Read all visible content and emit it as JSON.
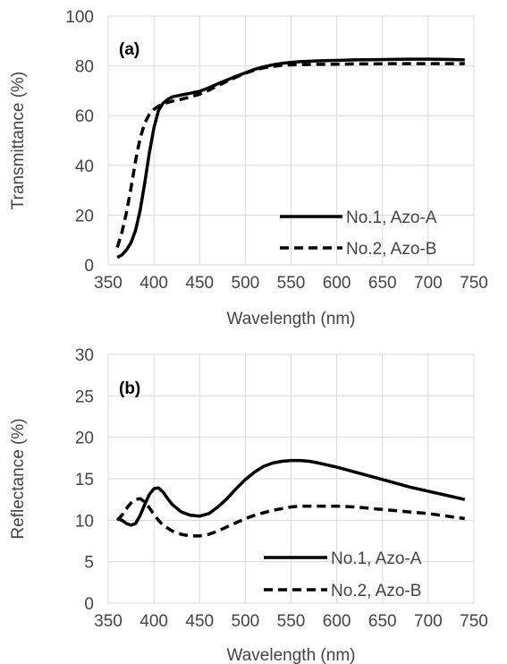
{
  "chart_data": [
    {
      "type": "line",
      "panel_label": "(a)",
      "xlabel": "Wavelength (nm)",
      "ylabel": "Transmittance (%)",
      "xlim": [
        350,
        750
      ],
      "ylim": [
        0,
        100
      ],
      "xticks": [
        350,
        400,
        450,
        500,
        550,
        600,
        650,
        700,
        750
      ],
      "yticks": [
        0,
        20,
        40,
        60,
        80,
        100
      ],
      "grid": true,
      "legend_position": "bottom-right",
      "series": [
        {
          "name": "No.1, Azo-A",
          "style": "solid",
          "color": "#000000",
          "x": [
            360,
            365,
            370,
            375,
            380,
            385,
            390,
            395,
            400,
            405,
            410,
            415,
            420,
            430,
            440,
            450,
            460,
            470,
            480,
            490,
            500,
            510,
            520,
            530,
            540,
            550,
            560,
            580,
            600,
            620,
            640,
            660,
            680,
            700,
            720,
            740
          ],
          "y": [
            3,
            4,
            6,
            9,
            14,
            22,
            33,
            45,
            55,
            62,
            65,
            66.5,
            67.5,
            68.3,
            69,
            69.8,
            71.2,
            72.8,
            74.3,
            75.8,
            77.2,
            78.6,
            79.6,
            80.4,
            81,
            81.4,
            81.7,
            82,
            82.2,
            82.4,
            82.5,
            82.6,
            82.7,
            82.7,
            82.6,
            82.4
          ]
        },
        {
          "name": "No.2, Azo-B",
          "style": "dashed",
          "color": "#000000",
          "x": [
            360,
            365,
            370,
            375,
            380,
            385,
            390,
            395,
            400,
            405,
            410,
            420,
            430,
            440,
            450,
            460,
            470,
            480,
            490,
            500,
            510,
            520,
            530,
            540,
            550,
            560,
            580,
            600,
            620,
            640,
            660,
            680,
            700,
            720,
            740
          ],
          "y": [
            7,
            13,
            21,
            31,
            42,
            51,
            57,
            60.5,
            62.5,
            63.8,
            64.7,
            65.8,
            66.6,
            67.5,
            68.6,
            70.2,
            72.1,
            73.8,
            75.5,
            77,
            78.3,
            79.2,
            79.8,
            80.2,
            80.4,
            80.5,
            80.6,
            80.7,
            80.8,
            80.8,
            80.9,
            80.9,
            80.9,
            80.9,
            80.9
          ]
        }
      ]
    },
    {
      "type": "line",
      "panel_label": "(b)",
      "xlabel": "Wavelength (nm)",
      "ylabel": "Reflectance (%)",
      "xlim": [
        350,
        750
      ],
      "ylim": [
        0,
        30
      ],
      "xticks": [
        350,
        400,
        450,
        500,
        550,
        600,
        650,
        700,
        750
      ],
      "yticks": [
        0,
        5,
        10,
        15,
        20,
        25,
        30
      ],
      "grid": true,
      "legend_position": "bottom-right",
      "series": [
        {
          "name": "No.1, Azo-A",
          "style": "solid",
          "color": "#000000",
          "x": [
            360,
            365,
            370,
            375,
            380,
            385,
            390,
            395,
            400,
            405,
            410,
            415,
            420,
            430,
            440,
            450,
            460,
            470,
            480,
            490,
            500,
            510,
            520,
            530,
            540,
            550,
            560,
            570,
            580,
            600,
            620,
            640,
            660,
            680,
            700,
            720,
            740
          ],
          "y": [
            10.2,
            10,
            9.6,
            9.4,
            9.6,
            10.6,
            11.9,
            13.1,
            13.8,
            13.9,
            13.4,
            12.6,
            11.9,
            11,
            10.6,
            10.5,
            10.8,
            11.6,
            12.6,
            13.8,
            14.9,
            15.8,
            16.5,
            16.9,
            17.1,
            17.2,
            17.2,
            17.1,
            16.9,
            16.4,
            15.8,
            15.2,
            14.6,
            14,
            13.5,
            13,
            12.5
          ]
        },
        {
          "name": "No.2, Azo-B",
          "style": "dashed",
          "color": "#000000",
          "x": [
            360,
            365,
            370,
            375,
            380,
            385,
            390,
            395,
            400,
            405,
            410,
            420,
            430,
            440,
            450,
            460,
            470,
            480,
            490,
            500,
            510,
            520,
            530,
            540,
            550,
            560,
            570,
            580,
            600,
            620,
            640,
            660,
            680,
            700,
            720,
            740
          ],
          "y": [
            10,
            10.6,
            11.4,
            12.1,
            12.5,
            12.6,
            12.2,
            11.5,
            10.7,
            10,
            9.4,
            8.7,
            8.3,
            8.1,
            8.1,
            8.3,
            8.7,
            9.2,
            9.7,
            10.2,
            10.6,
            10.9,
            11.2,
            11.4,
            11.6,
            11.7,
            11.7,
            11.7,
            11.7,
            11.6,
            11.4,
            11.2,
            11,
            10.8,
            10.5,
            10.2
          ]
        }
      ]
    }
  ]
}
